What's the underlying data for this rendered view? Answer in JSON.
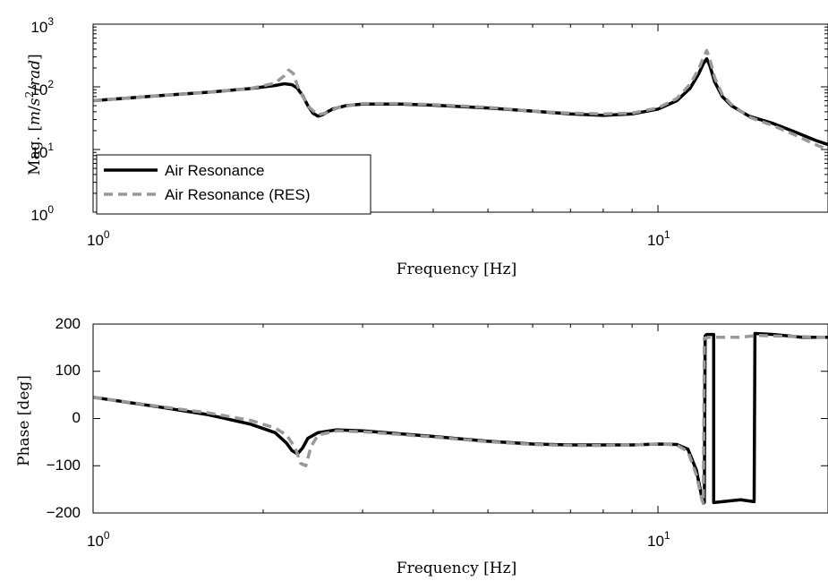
{
  "chart_data": [
    {
      "type": "line",
      "xscale": "log",
      "yscale": "log",
      "xlim": [
        1,
        20
      ],
      "ylim": [
        1,
        1000
      ],
      "xticks": [
        {
          "base": "10",
          "exp": "0"
        },
        {
          "base": "10",
          "exp": "1"
        }
      ],
      "yticks": [
        {
          "base": "10",
          "exp": "0"
        },
        {
          "base": "10",
          "exp": "1"
        },
        {
          "base": "10",
          "exp": "2"
        },
        {
          "base": "10",
          "exp": "3"
        }
      ],
      "xlabel": "Frequency [Hz]",
      "ylabel": {
        "prefix": "Mag. [",
        "m": "m",
        "slash1": "/",
        "s": "s",
        "exp": "2",
        "slash2": "/",
        "rad": "rad",
        "suffix": "]"
      },
      "legend": {
        "placement": "bottom-left",
        "entries": [
          "Air Resonance",
          "Air Resonance (RES)"
        ]
      },
      "series": [
        {
          "name": "Air Resonance",
          "color": "#000000",
          "style": "solid",
          "points": [
            [
              1,
              60
            ],
            [
              1.3,
              72
            ],
            [
              1.6,
              82
            ],
            [
              1.9,
              94
            ],
            [
              2.1,
              105
            ],
            [
              2.18,
              112
            ],
            [
              2.25,
              108
            ],
            [
              2.3,
              95
            ],
            [
              2.35,
              72
            ],
            [
              2.4,
              50
            ],
            [
              2.45,
              38
            ],
            [
              2.5,
              34
            ],
            [
              2.55,
              36
            ],
            [
              2.65,
              44
            ],
            [
              2.8,
              50
            ],
            [
              3.0,
              53
            ],
            [
              3.5,
              53
            ],
            [
              4.0,
              51
            ],
            [
              5.0,
              46
            ],
            [
              6.0,
              41
            ],
            [
              7.0,
              37
            ],
            [
              8.0,
              35
            ],
            [
              9.0,
              37
            ],
            [
              10.0,
              44
            ],
            [
              10.8,
              60
            ],
            [
              11.4,
              95
            ],
            [
              11.8,
              160
            ],
            [
              12.05,
              240
            ],
            [
              12.2,
              280
            ],
            [
              12.35,
              220
            ],
            [
              12.6,
              120
            ],
            [
              13.0,
              70
            ],
            [
              13.5,
              50
            ],
            [
              14.5,
              34
            ],
            [
              16.0,
              26
            ],
            [
              17.5,
              19
            ],
            [
              19.0,
              14
            ],
            [
              20.0,
              12
            ]
          ]
        },
        {
          "name": "Air Resonance (RES)",
          "color": "#999999",
          "style": "dashed",
          "points": [
            [
              1,
              60
            ],
            [
              1.3,
              72
            ],
            [
              1.6,
              82
            ],
            [
              1.9,
              94
            ],
            [
              2.1,
              115
            ],
            [
              2.18,
              150
            ],
            [
              2.22,
              185
            ],
            [
              2.26,
              165
            ],
            [
              2.3,
              105
            ],
            [
              2.35,
              70
            ],
            [
              2.42,
              46
            ],
            [
              2.5,
              36
            ],
            [
              2.58,
              38
            ],
            [
              2.7,
              46
            ],
            [
              2.9,
              52
            ],
            [
              3.0,
              54
            ],
            [
              3.5,
              54
            ],
            [
              4.0,
              52
            ],
            [
              5.0,
              47
            ],
            [
              6.0,
              41
            ],
            [
              7.0,
              38
            ],
            [
              8.0,
              37
            ],
            [
              9.0,
              38
            ],
            [
              10.0,
              46
            ],
            [
              10.8,
              65
            ],
            [
              11.4,
              110
            ],
            [
              11.8,
              190
            ],
            [
              12.05,
              300
            ],
            [
              12.2,
              380
            ],
            [
              12.35,
              280
            ],
            [
              12.6,
              140
            ],
            [
              13.0,
              75
            ],
            [
              13.5,
              52
            ],
            [
              14.5,
              33
            ],
            [
              16.0,
              24
            ],
            [
              17.5,
              17
            ],
            [
              19.0,
              12
            ],
            [
              20.0,
              10
            ]
          ]
        }
      ]
    },
    {
      "type": "line",
      "xscale": "log",
      "yscale": "linear",
      "xlim": [
        1,
        20
      ],
      "ylim": [
        -200,
        200
      ],
      "xticks": [
        {
          "base": "10",
          "exp": "0"
        },
        {
          "base": "10",
          "exp": "1"
        }
      ],
      "yticks": [
        "200",
        "100",
        "0",
        "−100",
        "−200"
      ],
      "yticks_values": [
        200,
        100,
        0,
        -100,
        -200
      ],
      "xlabel": "Frequency [Hz]",
      "ylabel": "Phase [deg]",
      "series": [
        {
          "name": "Air Resonance",
          "color": "#000000",
          "style": "solid",
          "points": [
            [
              1,
              45
            ],
            [
              1.3,
              25
            ],
            [
              1.6,
              8
            ],
            [
              1.9,
              -12
            ],
            [
              2.1,
              -30
            ],
            [
              2.2,
              -52
            ],
            [
              2.25,
              -68
            ],
            [
              2.3,
              -75
            ],
            [
              2.35,
              -62
            ],
            [
              2.4,
              -42
            ],
            [
              2.5,
              -30
            ],
            [
              2.7,
              -24
            ],
            [
              3.0,
              -26
            ],
            [
              4.0,
              -38
            ],
            [
              5.0,
              -48
            ],
            [
              6.0,
              -54
            ],
            [
              7.0,
              -56
            ],
            [
              8.0,
              -56
            ],
            [
              9.0,
              -56
            ],
            [
              10.0,
              -54
            ],
            [
              10.8,
              -55
            ],
            [
              11.3,
              -65
            ],
            [
              11.7,
              -110
            ],
            [
              11.95,
              -165
            ],
            [
              12.08,
              -178
            ],
            [
              12.12,
              175
            ],
            [
              12.2,
              178
            ],
            [
              12.5,
              178
            ],
            [
              12.55,
              178
            ],
            [
              12.55,
              -178
            ],
            [
              13.0,
              -176
            ],
            [
              14.0,
              -172
            ],
            [
              14.8,
              -176
            ],
            [
              14.85,
              180
            ],
            [
              16.0,
              178
            ],
            [
              18.0,
              172
            ],
            [
              20.0,
              172
            ]
          ]
        },
        {
          "name": "Air Resonance (RES)",
          "color": "#999999",
          "style": "dashed",
          "points": [
            [
              1,
              45
            ],
            [
              1.3,
              26
            ],
            [
              1.6,
              12
            ],
            [
              1.9,
              -4
            ],
            [
              2.1,
              -20
            ],
            [
              2.2,
              -35
            ],
            [
              2.28,
              -62
            ],
            [
              2.33,
              -95
            ],
            [
              2.38,
              -100
            ],
            [
              2.43,
              -60
            ],
            [
              2.5,
              -35
            ],
            [
              2.7,
              -26
            ],
            [
              3.0,
              -28
            ],
            [
              4.0,
              -39
            ],
            [
              5.0,
              -49
            ],
            [
              6.0,
              -55
            ],
            [
              7.0,
              -57
            ],
            [
              8.0,
              -57
            ],
            [
              9.0,
              -56
            ],
            [
              10.0,
              -54
            ],
            [
              10.8,
              -56
            ],
            [
              11.3,
              -70
            ],
            [
              11.7,
              -120
            ],
            [
              11.95,
              -170
            ],
            [
              12.03,
              -180
            ],
            [
              12.08,
              170
            ],
            [
              12.3,
              172
            ],
            [
              13.0,
              172
            ],
            [
              14.0,
              172
            ],
            [
              15.0,
              176
            ],
            [
              17.0,
              174
            ],
            [
              20.0,
              172
            ]
          ]
        }
      ]
    }
  ]
}
